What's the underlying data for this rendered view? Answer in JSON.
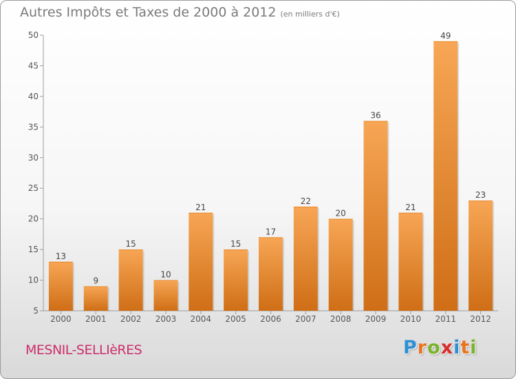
{
  "title": "Autres Impôts et Taxes de 2000 à 2012",
  "subtitle": "(en milliers d'€)",
  "location": "MESNIL-SELLIèRES",
  "logo": {
    "letters": [
      "P",
      "r",
      "o",
      "x",
      "i",
      "t",
      "i"
    ],
    "colors": [
      "#2d8fd4",
      "#e8741e",
      "#7bb32e",
      "#d92c2c",
      "#2d8fd4",
      "#e8741e",
      "#7bb32e"
    ]
  },
  "colors": {
    "bar_top": "#f7a655",
    "bar_bottom": "#cf6e16",
    "title": "#7a7a7a",
    "location": "#cc2f6b"
  },
  "chart_data": {
    "type": "bar",
    "title": "Autres Impôts et Taxes de 2000 à 2012",
    "subtitle": "(en milliers d'€)",
    "xlabel": "",
    "ylabel": "",
    "categories": [
      "2000",
      "2001",
      "2002",
      "2003",
      "2004",
      "2005",
      "2006",
      "2007",
      "2008",
      "2009",
      "2010",
      "2011",
      "2012"
    ],
    "values": [
      13,
      9,
      15,
      10,
      21,
      15,
      17,
      22,
      20,
      36,
      21,
      49,
      23
    ],
    "ylim": [
      5,
      50
    ],
    "yticks": [
      5,
      10,
      15,
      20,
      25,
      30,
      35,
      40,
      45,
      50
    ],
    "grid": false,
    "data_labels": true
  }
}
